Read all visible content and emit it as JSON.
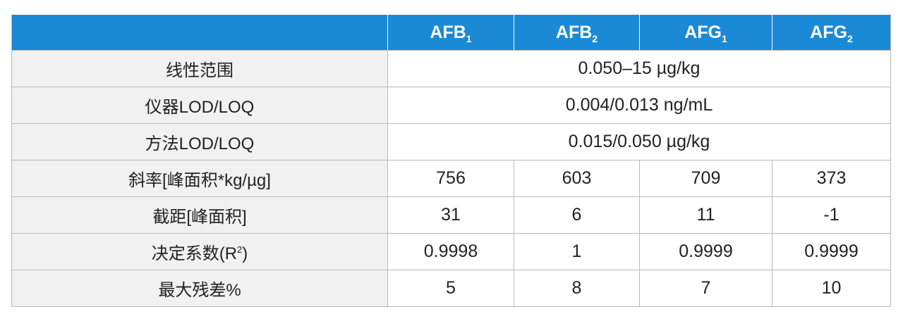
{
  "header": {
    "col1": {
      "base": "AFB",
      "sub": "1"
    },
    "col2": {
      "base": "AFB",
      "sub": "2"
    },
    "col3": {
      "base": "AFG",
      "sub": "1"
    },
    "col4": {
      "base": "AFG",
      "sub": "2"
    }
  },
  "rows": {
    "linear_range": {
      "label": "线性范围",
      "value": "0.050–15 µg/kg"
    },
    "instrument_lod": {
      "label": "仪器LOD/LOQ",
      "value": "0.004/0.013 ng/mL"
    },
    "method_lod": {
      "label": "方法LOD/LOQ",
      "value": "0.015/0.050 µg/kg"
    },
    "slope": {
      "label": "斜率[峰面积*kg/µg]",
      "values": [
        "756",
        "603",
        "709",
        "373"
      ]
    },
    "intercept": {
      "label": "截距[峰面积]",
      "values": [
        "31",
        "6",
        "11",
        "-1"
      ]
    },
    "r2": {
      "label_pre": "决定系数(R",
      "label_sup": "2",
      "label_post": ")",
      "values": [
        "0.9998",
        "1",
        "0.9999",
        "0.9999"
      ]
    },
    "max_residual": {
      "label": "最大残差%",
      "values": [
        "5",
        "8",
        "7",
        "10"
      ]
    }
  }
}
